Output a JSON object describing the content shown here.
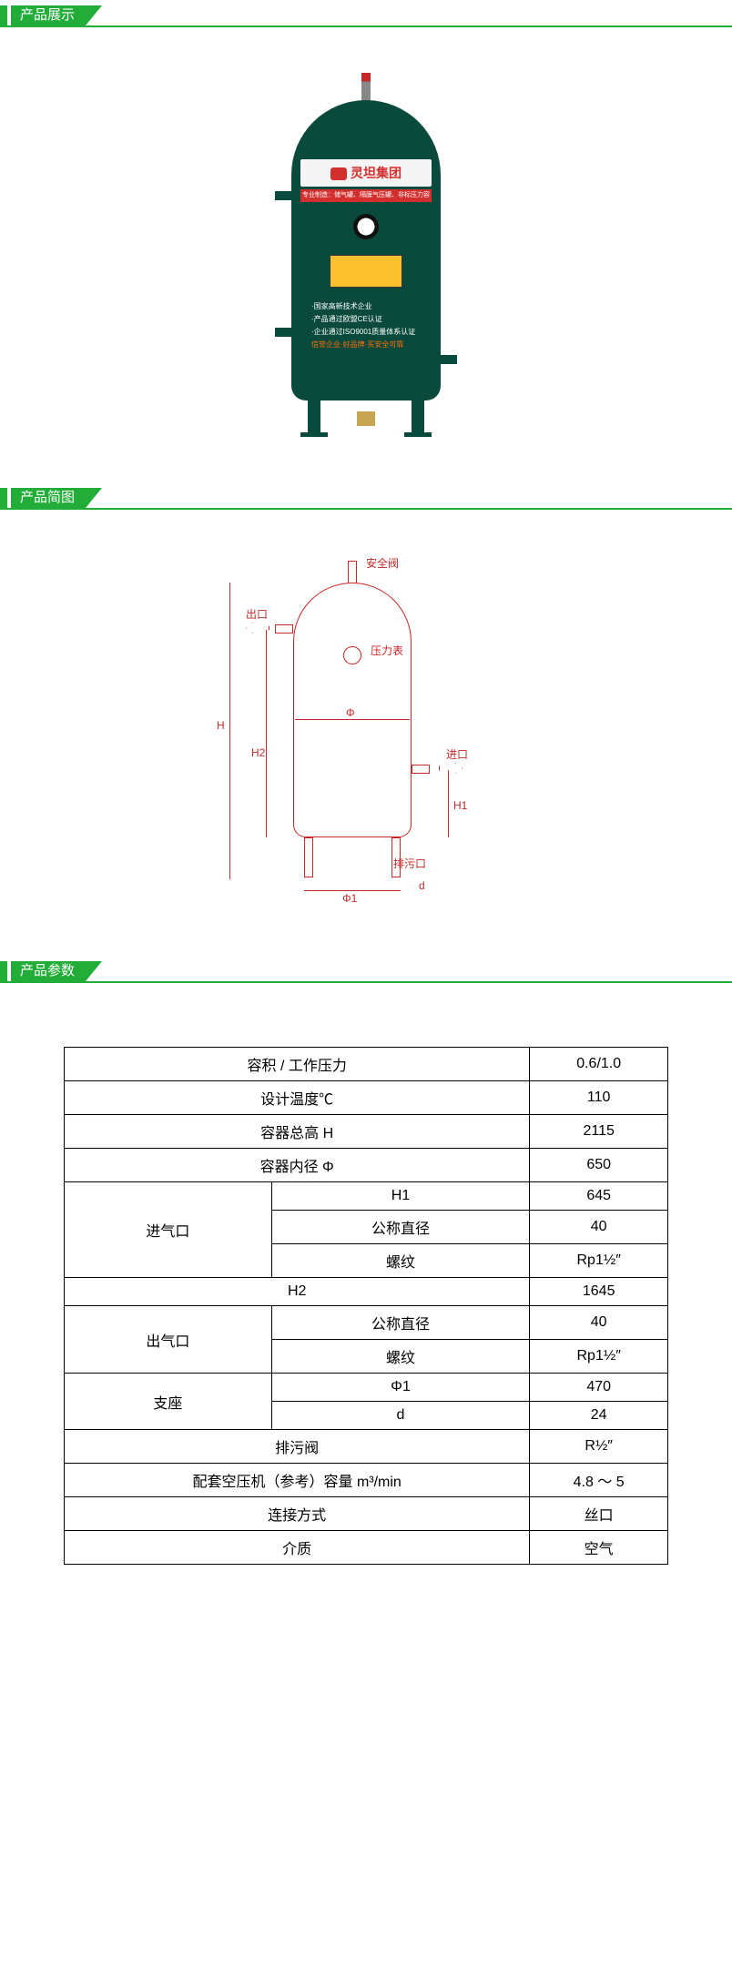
{
  "sections": {
    "display": "产品展示",
    "diagram": "产品简图",
    "params": "产品参数"
  },
  "product": {
    "brand_label": "灵坦集团",
    "sub_label": "专业制造：储气罐、隔膜气压罐、非标压力容器",
    "bullet1": "·国家高新技术企业",
    "bullet2": "·产品通过欧盟CE认证",
    "bullet3": "·企业通过ISO9001质量体系认证",
    "slogan": "信誉企业·好品牌·买安全可靠"
  },
  "diagram": {
    "safety_valve": "安全阀",
    "outlet": "出口",
    "pressure_gauge": "压力表",
    "inlet": "进口",
    "drain": "排污口",
    "H": "H",
    "H1": "H1",
    "H2": "H2",
    "phi": "Φ",
    "phi1": "Φ1",
    "d": "d"
  },
  "spec": {
    "rows": [
      {
        "label": "容积 / 工作压力",
        "sub": null,
        "value": "0.6/1.0",
        "span": 2
      },
      {
        "label": "设计温度℃",
        "sub": null,
        "value": "110",
        "span": 2
      },
      {
        "label": "容器总高 H",
        "sub": null,
        "value": "2115",
        "span": 2
      },
      {
        "label": "容器内径 Φ",
        "sub": null,
        "value": "650",
        "span": 2
      }
    ],
    "inlet": {
      "group": "进气口",
      "items": [
        {
          "sub": "H1",
          "value": "645"
        },
        {
          "sub": "公称直径",
          "value": "40"
        },
        {
          "sub": "螺纹",
          "value": "Rp1½″"
        }
      ]
    },
    "h2": {
      "label": "H2",
      "value": "1645"
    },
    "outlet": {
      "group": "出气口",
      "items": [
        {
          "sub": "公称直径",
          "value": "40"
        },
        {
          "sub": "螺纹",
          "value": "Rp1½″"
        }
      ]
    },
    "support": {
      "group": "支座",
      "items": [
        {
          "sub": "Φ1",
          "value": "470"
        },
        {
          "sub": "d",
          "value": "24"
        }
      ]
    },
    "tail": [
      {
        "label": "排污阀",
        "value": "R½″"
      },
      {
        "label": "配套空压机（参考）容量 m³/min",
        "value": "4.8 ～ 5"
      },
      {
        "label": "连接方式",
        "value": "丝口"
      },
      {
        "label": "介质",
        "value": "空气"
      }
    ]
  },
  "colors": {
    "accent": "#22ac38",
    "tank": "#0a4a3c",
    "diagram_line": "#c62828"
  }
}
